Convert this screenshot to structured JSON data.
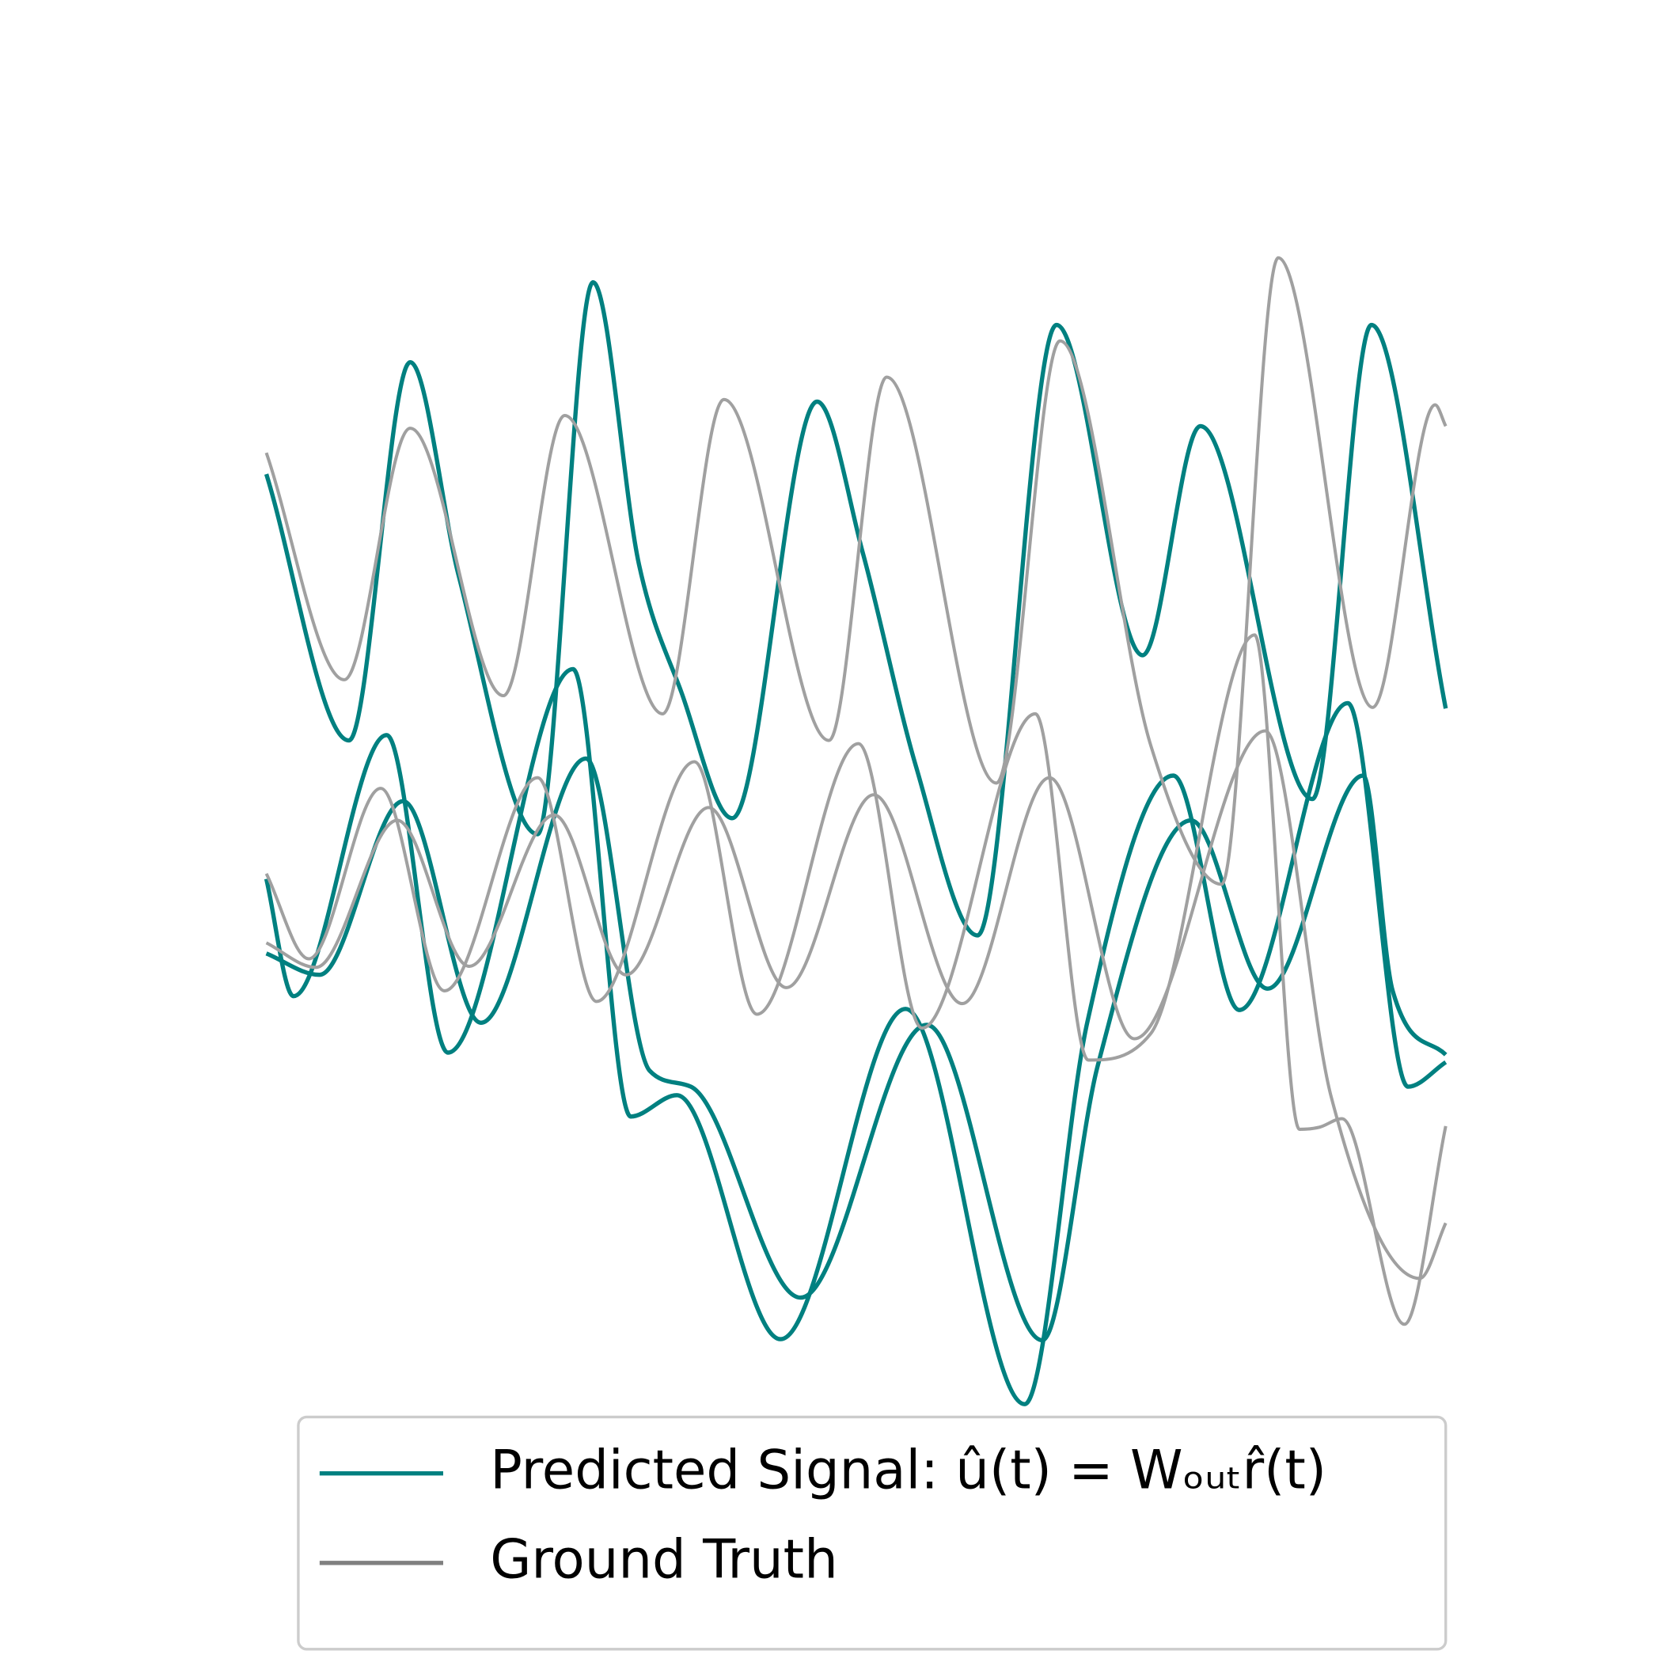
{
  "chart_data": {
    "type": "line",
    "xlim": [
      0,
      100
    ],
    "ylim": [
      0,
      110
    ],
    "legend": "lower center",
    "series": [
      {
        "name": "Predicted Signal: û(t) = Wₒᵤₜr̂(t)",
        "color": "#008080",
        "x": [
          0,
          7.0,
          12.2,
          16.3,
          23.0,
          27.7,
          31.6,
          35.2,
          39.5,
          46.7,
          50.6,
          55.1,
          60.3,
          67.0,
          74.3,
          79.2,
          88.7,
          93.7,
          100
        ],
        "values": [
          88.5,
          63.5,
          99.0,
          79.0,
          54.7,
          106.5,
          80.0,
          68.0,
          56.2,
          95.3,
          81.0,
          61.0,
          45.2,
          102.5,
          71.5,
          93.0,
          58.0,
          102.5,
          66.5
        ]
      },
      {
        "name": "Predicted Signal: û(t) = Wₒᵤₜr̂(t)",
        "color": "#008080",
        "x": [
          0,
          2.3,
          10.2,
          15.4,
          26.0,
          30.9,
          34.8,
          43.6,
          54.2,
          64.3,
          69.6,
          76.9,
          82.5,
          91.7,
          96.8,
          100
        ],
        "values": [
          50.5,
          39.5,
          64.0,
          34.2,
          70.2,
          28.2,
          30.2,
          7.3,
          38.3,
          1.2,
          37.0,
          60.2,
          38.2,
          67.0,
          31.0,
          33.3
        ]
      },
      {
        "name": "Predicted Signal: û(t) = Wₒᵤₜr̂(t)",
        "color": "#008080",
        "x": [
          0,
          4.5,
          11.6,
          18.2,
          27.1,
          32.5,
          36.0,
          45.3,
          56.0,
          65.8,
          70.5,
          78.4,
          84.9,
          93.0,
          95.5,
          100
        ],
        "values": [
          43.5,
          41.5,
          57.8,
          37.0,
          61.8,
          32.5,
          31.0,
          11.2,
          36.8,
          7.2,
          33.0,
          56.0,
          40.2,
          60.2,
          40.0,
          34.0
        ]
      },
      {
        "name": "Ground Truth",
        "color": "#a0a0a0",
        "x": [
          0,
          6.6,
          12.2,
          20.1,
          25.3,
          33.6,
          38.8,
          47.7,
          52.6,
          61.9,
          67.3,
          75.0,
          81.0,
          85.8,
          93.8,
          99.1,
          100
        ],
        "values": [
          90.5,
          69.2,
          92.8,
          67.7,
          94.0,
          66.0,
          95.5,
          63.5,
          97.6,
          59.5,
          101.0,
          63.0,
          50.0,
          108.8,
          66.6,
          95.0,
          93.0
        ]
      },
      {
        "name": "Ground Truth",
        "color": "#a0a0a0",
        "x": [
          0,
          3.6,
          9.7,
          15.1,
          23.0,
          28.0,
          36.3,
          41.6,
          50.2,
          55.6,
          65.2,
          69.7,
          75.0,
          83.8,
          87.6,
          89.3,
          91.2,
          96.5,
          100
        ],
        "values": [
          51.0,
          43.0,
          59.0,
          40.0,
          60.0,
          39.0,
          61.5,
          37.8,
          63.2,
          36.5,
          66.0,
          33.5,
          36.0,
          73.4,
          27.0,
          27.2,
          28.0,
          8.7,
          27.3
        ]
      },
      {
        "name": "Ground Truth",
        "color": "#a0a0a0",
        "x": [
          0,
          4.2,
          11.1,
          17.2,
          24.4,
          30.5,
          37.5,
          44.1,
          51.5,
          59.0,
          66.4,
          73.6,
          84.7,
          90.3,
          97.8,
          100
        ],
        "values": [
          44.5,
          42.2,
          56.0,
          42.3,
          56.5,
          41.5,
          57.2,
          40.3,
          58.4,
          38.8,
          60.0,
          35.5,
          64.4,
          30.0,
          13.0,
          18.2
        ]
      }
    ]
  }
}
